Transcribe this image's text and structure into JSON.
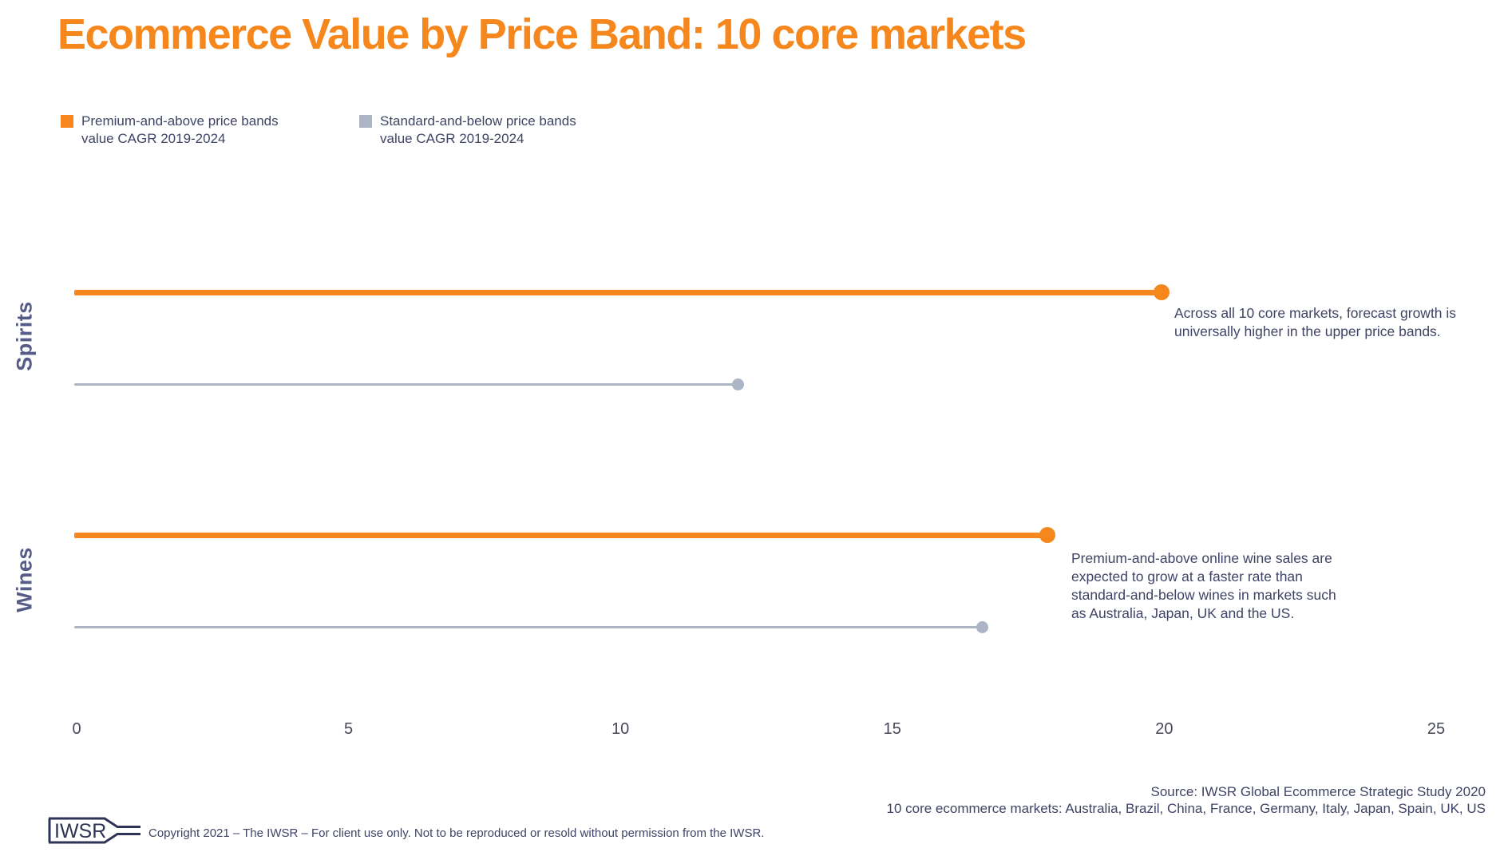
{
  "title": "Ecommerce Value by Price Band: 10 core markets",
  "colors": {
    "accent_orange": "#F5871D",
    "series_premium": "#F5871D",
    "series_standard": "#ABB5C6",
    "text_dark": "#3F4465",
    "category_label": "#565B87",
    "logo_navy": "#2F3356"
  },
  "legend": {
    "premium_label": "Premium-and-above price bands\nvalue CAGR 2019-2024",
    "standard_label": "Standard-and-below price bands\nvalue CAGR 2019-2024"
  },
  "chart_data": {
    "type": "bar",
    "orientation": "horizontal",
    "title": "Ecommerce Value by Price Band: 10 core markets",
    "categories": [
      "Spirits",
      "Wines"
    ],
    "series": [
      {
        "name": "Premium-and-above price bands value CAGR 2019-2024",
        "values": [
          20.0,
          17.9
        ],
        "color": "#F5871D"
      },
      {
        "name": "Standard-and-below price bands value CAGR 2019-2024",
        "values": [
          12.2,
          16.7
        ],
        "color": "#ABB5C6"
      }
    ],
    "xlabel": "",
    "ylabel": "",
    "xlim": [
      0,
      25
    ],
    "x_ticks": [
      "0",
      "5",
      "10",
      "15",
      "20",
      "25"
    ],
    "grid": false,
    "legend_position": "top-left",
    "annotations": [
      {
        "category": "Spirits",
        "text": "Across all 10 core markets, forecast growth is\nuniversally higher in the upper price bands."
      },
      {
        "category": "Wines",
        "text": "Premium-and-above online wine sales are\nexpected to grow at a faster rate than\nstandard-and-below wines in markets such\nas Australia, Japan, UK and the US."
      }
    ]
  },
  "source": {
    "line1": "Source: IWSR Global Ecommerce Strategic Study 2020",
    "line2": "10 core ecommerce markets: Australia, Brazil, China, France, Germany, Italy, Japan, Spain, UK, US"
  },
  "footer": {
    "logo_text": "IWSR",
    "copyright": "Copyright 2021 – The IWSR – For client use only. Not to be reproduced or resold without permission from the IWSR."
  }
}
